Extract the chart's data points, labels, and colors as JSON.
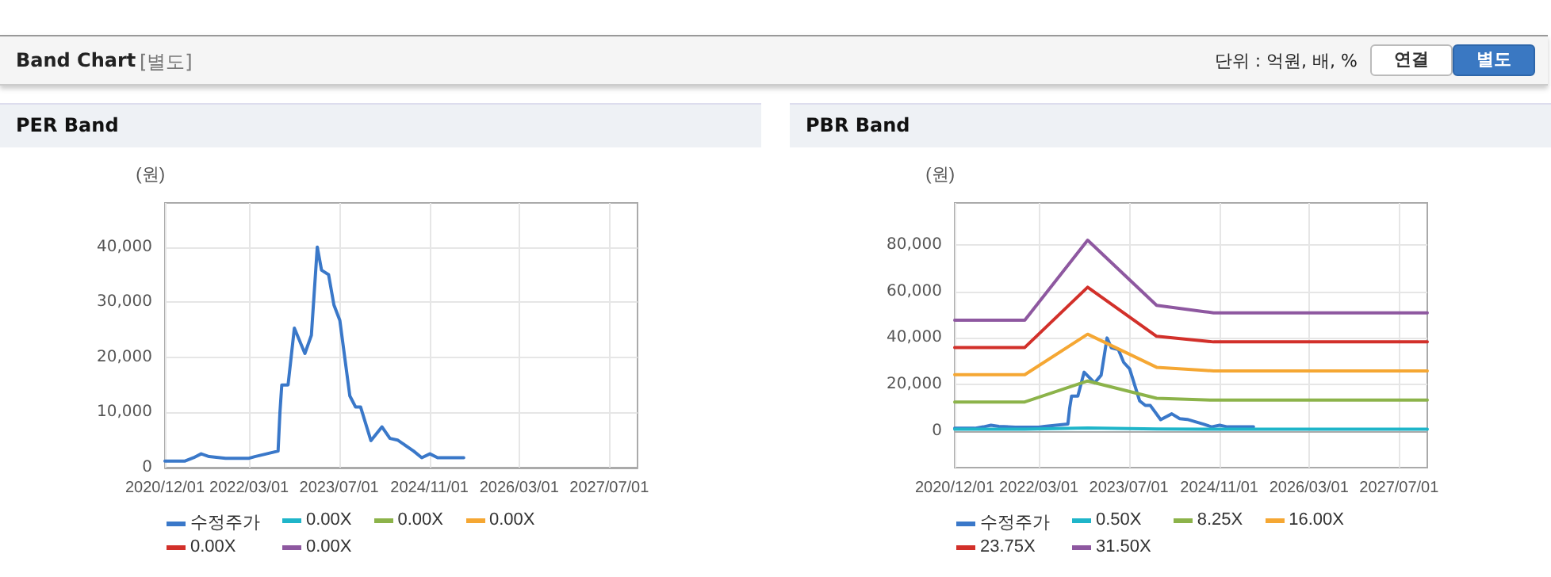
{
  "chart_data": [
    {
      "type": "other",
      "title": "Band Chart",
      "subtitle": "[별도]",
      "annotations": [
        "단위 : 억원, 배, %",
        "연결",
        "별도"
      ]
    },
    {
      "type": "line",
      "title": "PER Band",
      "ylabel": "(원)",
      "xlim": [
        "2020-12-01",
        "2027-12-01"
      ],
      "ylim": [
        0,
        48000
      ],
      "xticks": [
        {
          "value": "2020-12-01",
          "label": "2020/12/01"
        },
        {
          "value": "2022-03-01",
          "label": "2022/03/01"
        },
        {
          "value": "2023-07-01",
          "label": "2023/07/01"
        },
        {
          "value": "2024-11-01",
          "label": "2024/11/01"
        },
        {
          "value": "2026-03-01",
          "label": "2026/03/01"
        },
        {
          "value": "2027-07-01",
          "label": "2027/07/01"
        }
      ],
      "yticks": [
        0,
        {
          "value": 10000,
          "label": "10,000"
        },
        {
          "value": 20000,
          "label": "20,000"
        },
        {
          "value": 30000,
          "label": "30,000"
        },
        {
          "value": 40000,
          "label": "40,000"
        }
      ],
      "grid": true,
      "legend": "bottom",
      "marker": "none",
      "line_style": "solid",
      "series": [
        {
          "name": "수정주가",
          "color": "#3a78c9",
          "x": [
            "2020-12-01",
            "2021-03-20",
            "2021-05-05",
            "2021-06-15",
            "2021-07-28",
            "2021-10-25",
            "2022-03-01",
            "2022-04-01",
            "2022-08-05",
            "2022-08-15",
            "2022-08-25",
            "2022-09-28",
            "2022-11-01",
            "2022-12-28",
            "2023-02-01",
            "2023-03-05",
            "2023-03-28",
            "2023-05-05",
            "2023-06-03",
            "2023-07-05",
            "2023-08-28",
            "2023-09-28",
            "2023-10-25",
            "2023-12-20",
            "2024-02-18",
            "2024-04-01",
            "2024-05-12",
            "2024-08-07",
            "2024-09-20",
            "2024-11-03",
            "2024-12-15",
            "2025-05-05"
          ],
          "values": [
            1200,
            1200,
            1800,
            2500,
            2000,
            1700,
            1700,
            2000,
            3000,
            10000,
            15000,
            15000,
            25300,
            20700,
            24000,
            40000,
            35800,
            35000,
            29500,
            26700,
            13000,
            11000,
            11000,
            4900,
            7400,
            5300,
            5000,
            3000,
            1800,
            2500,
            1800,
            1800
          ]
        },
        {
          "name": "0.00X",
          "color": "#1fb5c9"
        },
        {
          "name": "0.00X",
          "color": "#8cb34a"
        },
        {
          "name": "0.00X",
          "color": "#f5a733"
        },
        {
          "name": "0.00X",
          "color": "#d2302a"
        },
        {
          "name": "0.00X",
          "color": "#8e58a0"
        }
      ]
    },
    {
      "type": "line",
      "title": "PBR Band",
      "ylabel": "(원)",
      "xlim": [
        "2020-12-01",
        "2027-12-01"
      ],
      "ylim": [
        -15700,
        98000
      ],
      "xticks": [
        {
          "value": "2020-12-01",
          "label": "2020/12/01"
        },
        {
          "value": "2022-03-01",
          "label": "2022/03/01"
        },
        {
          "value": "2023-07-01",
          "label": "2023/07/01"
        },
        {
          "value": "2024-11-01",
          "label": "2024/11/01"
        },
        {
          "value": "2026-03-01",
          "label": "2026/03/01"
        },
        {
          "value": "2027-07-01",
          "label": "2027/07/01"
        }
      ],
      "yticks": [
        0,
        {
          "value": 20000,
          "label": "20,000"
        },
        {
          "value": 40000,
          "label": "40,000"
        },
        {
          "value": 60000,
          "label": "60,000"
        },
        {
          "value": 80000,
          "label": "80,000"
        }
      ],
      "grid": true,
      "legend": "bottom",
      "marker": "none",
      "line_style": "solid",
      "series": [
        {
          "name": "수정주가",
          "color": "#3a78c9",
          "x": [
            "2020-12-01",
            "2021-03-20",
            "2021-05-05",
            "2021-06-15",
            "2021-07-28",
            "2021-10-25",
            "2022-03-01",
            "2022-04-01",
            "2022-08-05",
            "2022-08-15",
            "2022-08-25",
            "2022-09-28",
            "2022-11-01",
            "2022-12-28",
            "2023-02-01",
            "2023-03-05",
            "2023-03-28",
            "2023-05-05",
            "2023-06-03",
            "2023-07-05",
            "2023-08-28",
            "2023-09-28",
            "2023-10-25",
            "2023-12-20",
            "2024-02-18",
            "2024-04-01",
            "2024-05-12",
            "2024-08-07",
            "2024-09-20",
            "2024-11-03",
            "2024-12-15",
            "2025-05-05"
          ],
          "values": [
            1200,
            1200,
            1800,
            2500,
            2000,
            1700,
            1700,
            2000,
            3000,
            10000,
            15000,
            15000,
            25300,
            20700,
            24000,
            40000,
            35800,
            35000,
            29500,
            26700,
            13000,
            11000,
            11000,
            4900,
            7400,
            5300,
            5000,
            3000,
            1800,
            2500,
            1800,
            1800
          ]
        },
        {
          "name": "0.50X",
          "color": "#1fb5c9",
          "x": [
            "2020-12-01",
            "2021-12-15",
            "2022-11-20",
            "2023-11-28",
            "2024-08-12",
            "2024-10-01",
            "2027-12-01"
          ],
          "values": [
            800,
            800,
            1300,
            900,
            800,
            800,
            800
          ]
        },
        {
          "name": "8.25X",
          "color": "#8cb34a",
          "x": [
            "2020-12-01",
            "2021-12-15",
            "2022-11-20",
            "2023-11-28",
            "2024-08-12",
            "2024-10-01",
            "2027-12-01"
          ],
          "values": [
            12500,
            12500,
            21500,
            14100,
            13400,
            13300,
            13300
          ]
        },
        {
          "name": "16.00X",
          "color": "#f5a733",
          "x": [
            "2020-12-01",
            "2021-12-15",
            "2022-11-20",
            "2023-11-28",
            "2024-08-12",
            "2024-10-01",
            "2027-12-01"
          ],
          "values": [
            24200,
            24200,
            41600,
            27400,
            26100,
            25800,
            25800
          ]
        },
        {
          "name": "23.75X",
          "color": "#d2302a",
          "x": [
            "2020-12-01",
            "2021-12-15",
            "2022-11-20",
            "2023-11-28",
            "2024-08-12",
            "2024-10-01",
            "2027-12-01"
          ],
          "values": [
            35900,
            35900,
            61800,
            40700,
            38700,
            38300,
            38300
          ]
        },
        {
          "name": "31.50X",
          "color": "#8e58a0",
          "x": [
            "2020-12-01",
            "2021-12-15",
            "2022-11-20",
            "2023-11-28",
            "2024-08-12",
            "2024-10-01",
            "2027-12-01"
          ],
          "values": [
            47600,
            47600,
            82000,
            54000,
            51300,
            50800,
            50800
          ]
        }
      ]
    }
  ]
}
